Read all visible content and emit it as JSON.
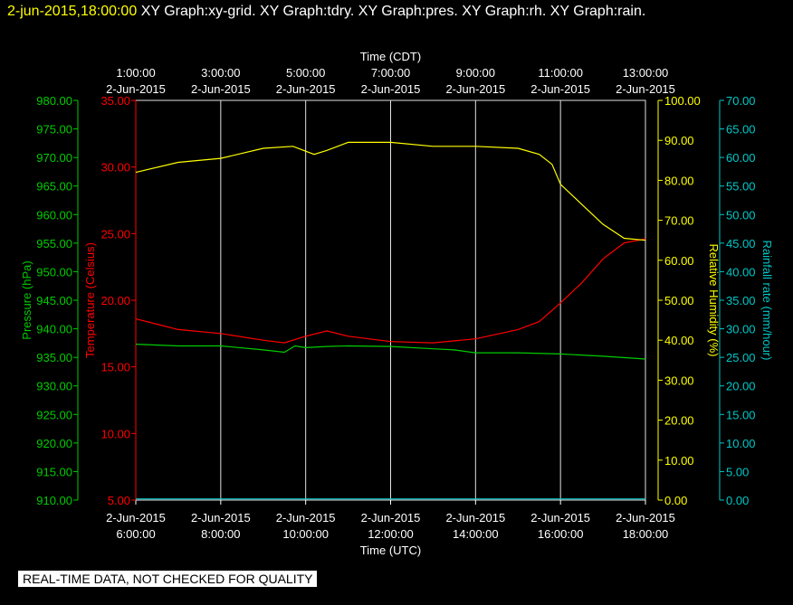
{
  "header": {
    "timestamp": "2-jun-2015,18:00:00",
    "titles": "XY Graph:xy-grid.  XY Graph:tdry.  XY Graph:pres.  XY Graph:rh.  XY Graph:rain."
  },
  "footer": {
    "notice": "REAL-TIME DATA, NOT CHECKED FOR QUALITY"
  },
  "colors": {
    "background": "#000000",
    "grid": "#e0e0e0",
    "pressure": "#00cc00",
    "temperature": "#ff0000",
    "humidity": "#ffff00",
    "rainfall": "#00c8c8",
    "text": "#ffffff"
  },
  "chart_data": {
    "type": "line",
    "grid": true,
    "top_axis": {
      "label": "Time (CDT)",
      "ticks": [
        {
          "time": "1:00:00",
          "date": "2-Jun-2015"
        },
        {
          "time": "3:00:00",
          "date": "2-Jun-2015"
        },
        {
          "time": "5:00:00",
          "date": "2-Jun-2015"
        },
        {
          "time": "7:00:00",
          "date": "2-Jun-2015"
        },
        {
          "time": "9:00:00",
          "date": "2-Jun-2015"
        },
        {
          "time": "11:00:00",
          "date": "2-Jun-2015"
        },
        {
          "time": "13:00:00",
          "date": "2-Jun-2015"
        }
      ]
    },
    "bottom_axis": {
      "label": "Time (UTC)",
      "ticks": [
        {
          "date": "2-Jun-2015",
          "time": "6:00:00"
        },
        {
          "date": "2-Jun-2015",
          "time": "8:00:00"
        },
        {
          "date": "2-Jun-2015",
          "time": "10:00:00"
        },
        {
          "date": "2-Jun-2015",
          "time": "12:00:00"
        },
        {
          "date": "2-Jun-2015",
          "time": "14:00:00"
        },
        {
          "date": "2-Jun-2015",
          "time": "16:00:00"
        },
        {
          "date": "2-Jun-2015",
          "time": "18:00:00"
        }
      ]
    },
    "x_range_utc_hours": [
      6,
      18
    ],
    "axes": {
      "pressure": {
        "label": "Pressure (hPa)",
        "range": [
          910,
          980
        ],
        "step": 5,
        "decimals": 2
      },
      "temperature": {
        "label": "Temperature (Celsius)",
        "range": [
          5,
          35
        ],
        "step": 5,
        "decimals": 2
      },
      "humidity": {
        "label": "Relative Humidity (%)",
        "range": [
          0,
          100
        ],
        "step": 10,
        "decimals": 2
      },
      "rainfall": {
        "label": "Rainfall rate (mm/hour)",
        "range": [
          0,
          70
        ],
        "step": 5,
        "decimals": 2
      }
    },
    "series": [
      {
        "name": "pressure",
        "axis": "pressure",
        "x": [
          6,
          7,
          8,
          9,
          9.5,
          9.75,
          10,
          10.5,
          11,
          12,
          13,
          13.5,
          14,
          15,
          16,
          17,
          18
        ],
        "y": [
          937.3,
          937,
          937,
          936.3,
          935.9,
          937,
          936.7,
          936.9,
          937,
          936.9,
          936.5,
          936.3,
          935.8,
          935.8,
          935.6,
          935.2,
          934.7
        ]
      },
      {
        "name": "temperature",
        "axis": "temperature",
        "x": [
          6,
          6.5,
          7,
          8,
          9,
          9.5,
          10,
          10.5,
          11,
          12,
          13,
          14,
          15,
          15.5,
          16,
          16.5,
          17,
          17.5,
          18
        ],
        "y": [
          18.6,
          18.2,
          17.8,
          17.5,
          17,
          16.8,
          17.3,
          17.7,
          17.3,
          16.9,
          16.8,
          17.1,
          17.8,
          18.4,
          19.8,
          21.3,
          23.1,
          24.3,
          24.6
        ]
      },
      {
        "name": "humidity",
        "axis": "humidity",
        "x": [
          6,
          7,
          8,
          9,
          9.7,
          10.2,
          10.5,
          11,
          12,
          13,
          14,
          15,
          15.5,
          15.8,
          16,
          16.5,
          17,
          17.5,
          18
        ],
        "y": [
          82,
          84.5,
          85.5,
          88,
          88.5,
          86.5,
          87.5,
          89.5,
          89.5,
          88.5,
          88.5,
          88,
          86.5,
          84,
          79,
          74,
          69,
          65.5,
          65
        ]
      },
      {
        "name": "rainfall",
        "axis": "rainfall",
        "x": [
          6,
          18
        ],
        "y": [
          0.2,
          0.2
        ]
      }
    ]
  }
}
